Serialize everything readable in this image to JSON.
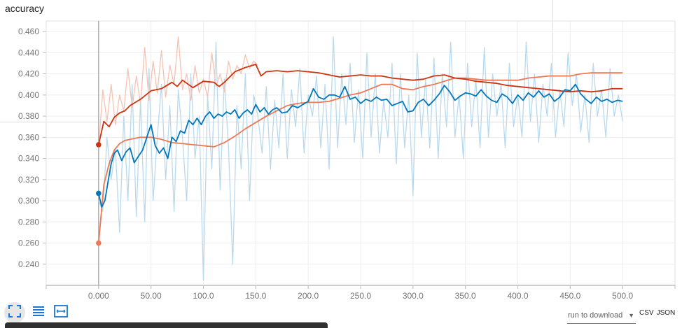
{
  "card": {
    "title": "accuracy"
  },
  "toolbar": {
    "fit_icon": "fullscreen-icon",
    "list_icon": "list-icon",
    "fit_domain_icon": "fit-domain-icon"
  },
  "download": {
    "select_value": "run to download",
    "csv_label": "CSV",
    "json_label": "JSON"
  },
  "colors": {
    "orange_dark": "#cc3311",
    "orange": "#ee7755",
    "blue": "#0077bb",
    "orange_light": "#f7c2b2",
    "blue_light": "#b9d9ec",
    "axis_text": "#757575",
    "grid": "#e0e0e0"
  },
  "chart_data": {
    "type": "line",
    "title": "accuracy",
    "xlabel": "",
    "ylabel": "",
    "xlim": [
      -50,
      550
    ],
    "ylim": [
      0.22,
      0.47
    ],
    "x_ticks": [
      "0.000",
      "50.00",
      "100.0",
      "150.0",
      "200.0",
      "250.0",
      "300.0",
      "350.0",
      "400.0",
      "450.0",
      "500.0"
    ],
    "y_ticks": [
      "0.240",
      "0.260",
      "0.280",
      "0.300",
      "0.320",
      "0.340",
      "0.360",
      "0.380",
      "0.400",
      "0.420",
      "0.440",
      "0.460"
    ],
    "grid": true,
    "legend": "none",
    "series": [
      {
        "color": "#cc3311",
        "x": [
          0,
          5,
          10,
          15,
          20,
          25,
          30,
          40,
          50,
          60,
          70,
          75,
          80,
          90,
          100,
          110,
          115,
          120,
          130,
          140,
          150,
          155,
          160,
          170,
          180,
          190,
          200,
          210,
          220,
          230,
          240,
          250,
          260,
          270,
          280,
          290,
          300,
          310,
          320,
          330,
          340,
          350,
          360,
          370,
          380,
          390,
          400,
          410,
          420,
          430,
          440,
          450,
          460,
          470,
          480,
          490,
          500
        ],
        "y": [
          0.353,
          0.375,
          0.37,
          0.379,
          0.383,
          0.385,
          0.39,
          0.396,
          0.404,
          0.406,
          0.412,
          0.408,
          0.414,
          0.407,
          0.413,
          0.412,
          0.408,
          0.412,
          0.422,
          0.426,
          0.429,
          0.418,
          0.422,
          0.423,
          0.422,
          0.423,
          0.422,
          0.421,
          0.419,
          0.417,
          0.418,
          0.419,
          0.418,
          0.418,
          0.416,
          0.415,
          0.414,
          0.415,
          0.418,
          0.419,
          0.416,
          0.415,
          0.413,
          0.412,
          0.411,
          0.409,
          0.408,
          0.407,
          0.406,
          0.405,
          0.404,
          0.403,
          0.404,
          0.403,
          0.404,
          0.406,
          0.406
        ]
      },
      {
        "color": "#ee7755",
        "x": [
          0,
          5,
          10,
          15,
          20,
          25,
          30,
          40,
          50,
          60,
          70,
          80,
          90,
          100,
          110,
          120,
          130,
          140,
          150,
          160,
          170,
          180,
          190,
          200,
          210,
          220,
          230,
          240,
          250,
          260,
          270,
          280,
          290,
          300,
          310,
          320,
          330,
          340,
          350,
          360,
          370,
          380,
          390,
          400,
          410,
          420,
          430,
          440,
          450,
          460,
          470,
          480,
          490,
          500
        ],
        "y": [
          0.26,
          0.315,
          0.335,
          0.348,
          0.354,
          0.357,
          0.358,
          0.36,
          0.36,
          0.358,
          0.355,
          0.354,
          0.353,
          0.352,
          0.351,
          0.355,
          0.361,
          0.368,
          0.374,
          0.38,
          0.385,
          0.39,
          0.392,
          0.393,
          0.393,
          0.394,
          0.397,
          0.4,
          0.402,
          0.406,
          0.41,
          0.41,
          0.406,
          0.405,
          0.408,
          0.41,
          0.413,
          0.416,
          0.416,
          0.415,
          0.414,
          0.414,
          0.414,
          0.414,
          0.416,
          0.417,
          0.418,
          0.418,
          0.418,
          0.42,
          0.421,
          0.421,
          0.421,
          0.421
        ]
      },
      {
        "color": "#0077bb",
        "x": [
          0,
          3,
          6,
          9,
          12,
          15,
          18,
          22,
          26,
          30,
          34,
          38,
          42,
          46,
          50,
          54,
          58,
          62,
          66,
          70,
          74,
          78,
          82,
          86,
          90,
          94,
          98,
          102,
          106,
          110,
          114,
          118,
          122,
          126,
          130,
          134,
          138,
          142,
          146,
          150,
          154,
          158,
          162,
          166,
          170,
          175,
          180,
          185,
          190,
          195,
          200,
          205,
          210,
          215,
          220,
          225,
          230,
          235,
          240,
          245,
          250,
          255,
          260,
          265,
          270,
          275,
          280,
          285,
          290,
          295,
          300,
          305,
          310,
          315,
          320,
          325,
          330,
          335,
          340,
          345,
          350,
          355,
          360,
          365,
          370,
          375,
          380,
          385,
          390,
          395,
          400,
          405,
          410,
          415,
          420,
          425,
          430,
          435,
          440,
          445,
          450,
          455,
          460,
          465,
          470,
          475,
          480,
          485,
          490,
          495,
          500
        ],
        "y": [
          0.307,
          0.294,
          0.3,
          0.318,
          0.335,
          0.345,
          0.348,
          0.338,
          0.346,
          0.35,
          0.336,
          0.342,
          0.348,
          0.36,
          0.372,
          0.352,
          0.345,
          0.35,
          0.34,
          0.36,
          0.356,
          0.366,
          0.364,
          0.376,
          0.372,
          0.378,
          0.372,
          0.38,
          0.384,
          0.378,
          0.382,
          0.38,
          0.384,
          0.382,
          0.386,
          0.378,
          0.383,
          0.386,
          0.382,
          0.391,
          0.384,
          0.388,
          0.382,
          0.386,
          0.388,
          0.383,
          0.384,
          0.39,
          0.388,
          0.391,
          0.394,
          0.406,
          0.398,
          0.396,
          0.4,
          0.4,
          0.398,
          0.408,
          0.396,
          0.398,
          0.392,
          0.396,
          0.394,
          0.398,
          0.395,
          0.396,
          0.39,
          0.392,
          0.394,
          0.384,
          0.385,
          0.393,
          0.396,
          0.39,
          0.395,
          0.401,
          0.409,
          0.403,
          0.395,
          0.399,
          0.402,
          0.401,
          0.399,
          0.405,
          0.399,
          0.395,
          0.393,
          0.401,
          0.398,
          0.392,
          0.4,
          0.395,
          0.402,
          0.398,
          0.404,
          0.398,
          0.401,
          0.394,
          0.398,
          0.405,
          0.404,
          0.41,
          0.401,
          0.396,
          0.392,
          0.398,
          0.394,
          0.396,
          0.393,
          0.395,
          0.394
        ]
      },
      {
        "color": "#f7c2b2",
        "x": [
          0,
          4,
          8,
          12,
          16,
          20,
          24,
          28,
          32,
          36,
          40,
          44,
          48,
          52,
          56,
          60,
          64,
          68,
          72,
          76,
          80,
          84,
          88,
          92,
          96,
          100,
          104,
          108,
          112,
          116,
          120,
          124,
          128,
          132,
          136,
          140,
          144,
          148,
          152
        ],
        "y": [
          0.35,
          0.405,
          0.375,
          0.41,
          0.372,
          0.4,
          0.385,
          0.425,
          0.388,
          0.418,
          0.392,
          0.445,
          0.395,
          0.432,
          0.402,
          0.442,
          0.398,
          0.428,
          0.41,
          0.455,
          0.405,
          0.42,
          0.395,
          0.428,
          0.402,
          0.415,
          0.398,
          0.44,
          0.408,
          0.42,
          0.403,
          0.432,
          0.415,
          0.428,
          0.42,
          0.438,
          0.425,
          0.432,
          0.428
        ]
      },
      {
        "color": "#b9d9ec",
        "x": [
          0,
          4,
          8,
          12,
          16,
          20,
          24,
          28,
          32,
          36,
          40,
          44,
          48,
          52,
          56,
          60,
          64,
          68,
          72,
          76,
          80,
          84,
          88,
          92,
          96,
          100,
          104,
          108,
          112,
          116,
          120,
          124,
          128,
          132,
          136,
          140,
          144,
          148,
          152,
          156,
          160,
          164,
          168,
          172,
          176,
          180,
          184,
          188,
          192,
          196,
          200,
          204,
          208,
          212,
          216,
          220,
          224,
          228,
          232,
          236,
          240,
          244,
          248,
          252,
          256,
          260,
          264,
          268,
          272,
          276,
          280,
          284,
          288,
          292,
          296,
          300,
          304,
          308,
          312,
          316,
          320,
          324,
          328,
          332,
          336,
          340,
          344,
          348,
          352,
          356,
          360,
          364,
          368,
          372,
          376,
          380,
          384,
          388,
          392,
          396,
          400,
          404,
          408,
          412,
          416,
          420,
          424,
          428,
          432,
          436,
          440,
          444,
          448,
          452,
          456,
          460,
          464,
          468,
          472,
          476,
          480,
          484,
          488,
          492,
          496,
          500
        ],
        "y": [
          0.3,
          0.29,
          0.36,
          0.32,
          0.35,
          0.27,
          0.38,
          0.3,
          0.41,
          0.285,
          0.395,
          0.28,
          0.425,
          0.3,
          0.36,
          0.41,
          0.32,
          0.39,
          0.29,
          0.405,
          0.36,
          0.3,
          0.42,
          0.34,
          0.38,
          0.225,
          0.4,
          0.33,
          0.45,
          0.31,
          0.415,
          0.35,
          0.24,
          0.39,
          0.33,
          0.42,
          0.3,
          0.4,
          0.38,
          0.345,
          0.408,
          0.33,
          0.395,
          0.35,
          0.42,
          0.34,
          0.405,
          0.37,
          0.425,
          0.345,
          0.4,
          0.38,
          0.418,
          0.35,
          0.41,
          0.33,
          0.455,
          0.35,
          0.42,
          0.372,
          0.43,
          0.355,
          0.405,
          0.34,
          0.44,
          0.36,
          0.42,
          0.345,
          0.395,
          0.36,
          0.43,
          0.335,
          0.42,
          0.35,
          0.4,
          0.305,
          0.44,
          0.36,
          0.415,
          0.35,
          0.435,
          0.34,
          0.42,
          0.37,
          0.45,
          0.36,
          0.4,
          0.34,
          0.43,
          0.37,
          0.415,
          0.35,
          0.445,
          0.36,
          0.42,
          0.38,
          0.41,
          0.35,
          0.43,
          0.37,
          0.4,
          0.36,
          0.45,
          0.375,
          0.42,
          0.355,
          0.41,
          0.38,
          0.43,
          0.36,
          0.405,
          0.37,
          0.44,
          0.39,
          0.42,
          0.365,
          0.4,
          0.355,
          0.43,
          0.38,
          0.405,
          0.36,
          0.425,
          0.38,
          0.4,
          0.375
        ]
      }
    ],
    "start_markers": [
      {
        "x": 0,
        "y": 0.353,
        "color": "#cc3311"
      },
      {
        "x": 0,
        "y": 0.307,
        "color": "#0077bb"
      },
      {
        "x": 0,
        "y": 0.26,
        "color": "#ee7755"
      }
    ]
  }
}
